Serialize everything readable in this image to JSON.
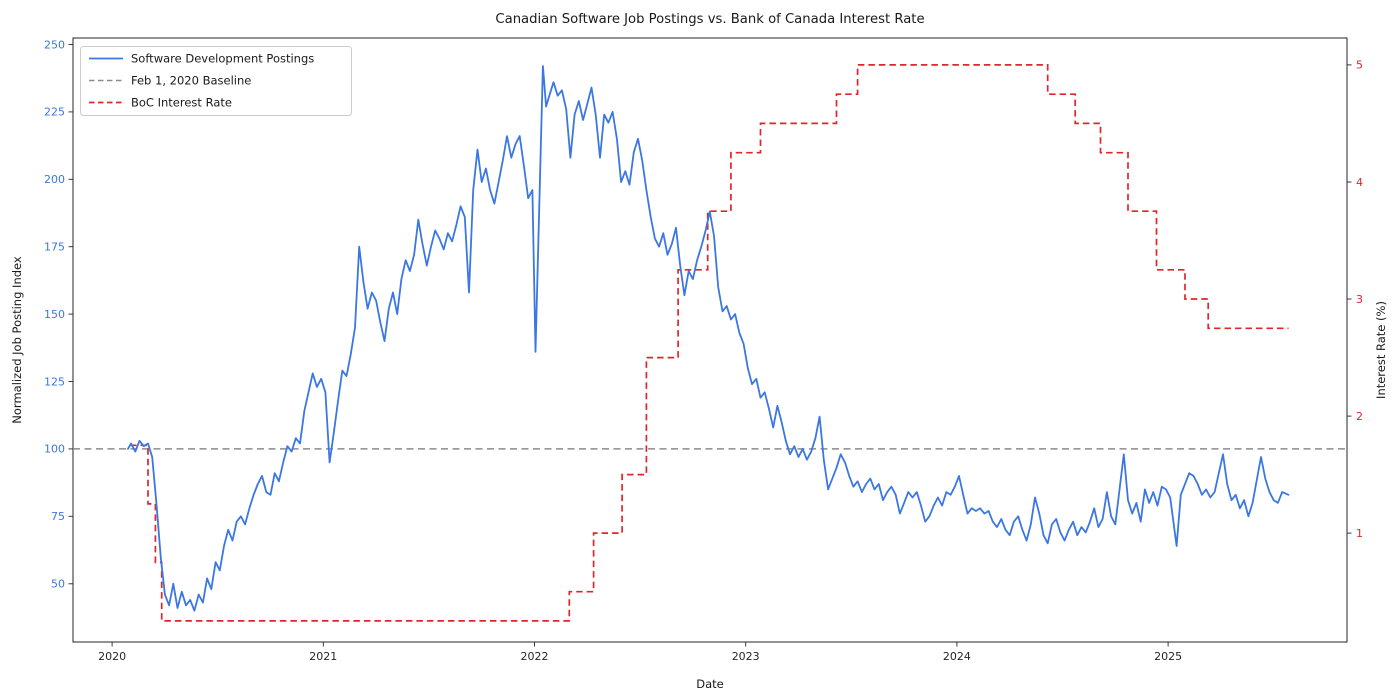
{
  "title": "Canadian Software Job Postings vs. Bank of Canada Interest Rate",
  "colors": {
    "postings_blue": "#3b77e3",
    "rate_red": "#e0252b",
    "baseline_gray": "#8c8c8c",
    "spine": "#262626",
    "legend_border": "#cccccc"
  },
  "legend": {
    "items": [
      {
        "label": "Software Development Postings",
        "style": "solid",
        "color": "#3b77e3"
      },
      {
        "label": "Feb 1, 2020 Baseline",
        "style": "dashed",
        "color": "#8c8c8c"
      },
      {
        "label": "BoC Interest Rate",
        "style": "dashed",
        "color": "#e0252b"
      }
    ]
  },
  "chart_data": {
    "type": "line",
    "title": "Canadian Software Job Postings vs. Bank of Canada Interest Rate",
    "xlabel": "Date",
    "ylabel_left": "Normalized Job Posting Index",
    "ylabel_right": "Interest Rate (%)",
    "legend_position": "upper left",
    "grid": false,
    "xlim": [
      2019.815,
      2025.847
    ],
    "ylim_left": [
      28.4,
      252.4
    ],
    "ylim_right": [
      0.07,
      5.23
    ],
    "x_ticks": [
      2020,
      2021,
      2022,
      2023,
      2024,
      2025
    ],
    "y_ticks_left": [
      50,
      75,
      100,
      125,
      150,
      175,
      200,
      225,
      250
    ],
    "y_ticks_right": [
      1,
      2,
      3,
      4,
      5
    ],
    "baseline": {
      "value": 100,
      "axis": "left",
      "label": "Feb 1, 2020 Baseline"
    },
    "series": [
      {
        "name": "Software Development Postings",
        "axis": "left",
        "style": "solid",
        "points": [
          [
            2020.075,
            100
          ],
          [
            2020.09,
            102
          ],
          [
            2020.11,
            99
          ],
          [
            2020.13,
            103
          ],
          [
            2020.15,
            101
          ],
          [
            2020.17,
            102
          ],
          [
            2020.19,
            97
          ],
          [
            2020.21,
            80
          ],
          [
            2020.23,
            60
          ],
          [
            2020.25,
            46
          ],
          [
            2020.27,
            42
          ],
          [
            2020.29,
            50
          ],
          [
            2020.31,
            41
          ],
          [
            2020.33,
            47
          ],
          [
            2020.35,
            42
          ],
          [
            2020.37,
            44
          ],
          [
            2020.39,
            40
          ],
          [
            2020.41,
            46
          ],
          [
            2020.43,
            43
          ],
          [
            2020.45,
            52
          ],
          [
            2020.47,
            48
          ],
          [
            2020.49,
            58
          ],
          [
            2020.51,
            55
          ],
          [
            2020.53,
            64
          ],
          [
            2020.55,
            70
          ],
          [
            2020.57,
            66
          ],
          [
            2020.59,
            73
          ],
          [
            2020.61,
            75
          ],
          [
            2020.63,
            72
          ],
          [
            2020.65,
            78
          ],
          [
            2020.67,
            83
          ],
          [
            2020.69,
            87
          ],
          [
            2020.71,
            90
          ],
          [
            2020.73,
            84
          ],
          [
            2020.75,
            83
          ],
          [
            2020.77,
            91
          ],
          [
            2020.79,
            88
          ],
          [
            2020.81,
            95
          ],
          [
            2020.83,
            101
          ],
          [
            2020.85,
            99
          ],
          [
            2020.87,
            104
          ],
          [
            2020.89,
            102
          ],
          [
            2020.91,
            114
          ],
          [
            2020.93,
            121
          ],
          [
            2020.95,
            128
          ],
          [
            2020.97,
            123
          ],
          [
            2020.99,
            126
          ],
          [
            2021.01,
            121
          ],
          [
            2021.03,
            95
          ],
          [
            2021.05,
            106
          ],
          [
            2021.07,
            118
          ],
          [
            2021.09,
            129
          ],
          [
            2021.11,
            127
          ],
          [
            2021.13,
            135
          ],
          [
            2021.15,
            145
          ],
          [
            2021.17,
            175
          ],
          [
            2021.19,
            162
          ],
          [
            2021.21,
            152
          ],
          [
            2021.23,
            158
          ],
          [
            2021.25,
            155
          ],
          [
            2021.27,
            147
          ],
          [
            2021.29,
            140
          ],
          [
            2021.31,
            152
          ],
          [
            2021.33,
            158
          ],
          [
            2021.35,
            150
          ],
          [
            2021.37,
            163
          ],
          [
            2021.39,
            170
          ],
          [
            2021.41,
            166
          ],
          [
            2021.43,
            172
          ],
          [
            2021.45,
            185
          ],
          [
            2021.47,
            176
          ],
          [
            2021.49,
            168
          ],
          [
            2021.51,
            175
          ],
          [
            2021.53,
            181
          ],
          [
            2021.55,
            178
          ],
          [
            2021.57,
            174
          ],
          [
            2021.59,
            180
          ],
          [
            2021.61,
            177
          ],
          [
            2021.63,
            183
          ],
          [
            2021.65,
            190
          ],
          [
            2021.67,
            186
          ],
          [
            2021.69,
            158
          ],
          [
            2021.71,
            196
          ],
          [
            2021.73,
            211
          ],
          [
            2021.75,
            199
          ],
          [
            2021.77,
            204
          ],
          [
            2021.79,
            196
          ],
          [
            2021.81,
            191
          ],
          [
            2021.83,
            199
          ],
          [
            2021.85,
            207
          ],
          [
            2021.87,
            216
          ],
          [
            2021.89,
            208
          ],
          [
            2021.91,
            213
          ],
          [
            2021.93,
            216
          ],
          [
            2021.95,
            205
          ],
          [
            2021.97,
            193
          ],
          [
            2021.99,
            196
          ],
          [
            2022.005,
            136
          ],
          [
            2022.04,
            242
          ],
          [
            2022.055,
            227
          ],
          [
            2022.07,
            231
          ],
          [
            2022.09,
            236
          ],
          [
            2022.11,
            231
          ],
          [
            2022.13,
            233
          ],
          [
            2022.15,
            226
          ],
          [
            2022.17,
            208
          ],
          [
            2022.19,
            224
          ],
          [
            2022.21,
            229
          ],
          [
            2022.23,
            222
          ],
          [
            2022.25,
            228
          ],
          [
            2022.27,
            234
          ],
          [
            2022.29,
            224
          ],
          [
            2022.31,
            208
          ],
          [
            2022.33,
            224
          ],
          [
            2022.35,
            221
          ],
          [
            2022.37,
            225
          ],
          [
            2022.39,
            215
          ],
          [
            2022.41,
            199
          ],
          [
            2022.43,
            203
          ],
          [
            2022.45,
            198
          ],
          [
            2022.47,
            210
          ],
          [
            2022.49,
            215
          ],
          [
            2022.51,
            207
          ],
          [
            2022.53,
            196
          ],
          [
            2022.55,
            186
          ],
          [
            2022.57,
            178
          ],
          [
            2022.59,
            175
          ],
          [
            2022.61,
            180
          ],
          [
            2022.63,
            172
          ],
          [
            2022.65,
            176
          ],
          [
            2022.67,
            182
          ],
          [
            2022.69,
            168
          ],
          [
            2022.71,
            157
          ],
          [
            2022.73,
            166
          ],
          [
            2022.75,
            163
          ],
          [
            2022.77,
            170
          ],
          [
            2022.79,
            175
          ],
          [
            2022.81,
            181
          ],
          [
            2022.83,
            188
          ],
          [
            2022.85,
            179
          ],
          [
            2022.87,
            160
          ],
          [
            2022.89,
            151
          ],
          [
            2022.91,
            153
          ],
          [
            2022.93,
            148
          ],
          [
            2022.95,
            150
          ],
          [
            2022.97,
            143
          ],
          [
            2022.99,
            139
          ],
          [
            2023.01,
            130
          ],
          [
            2023.03,
            124
          ],
          [
            2023.05,
            126
          ],
          [
            2023.07,
            119
          ],
          [
            2023.09,
            121
          ],
          [
            2023.11,
            115
          ],
          [
            2023.13,
            108
          ],
          [
            2023.15,
            116
          ],
          [
            2023.17,
            110
          ],
          [
            2023.19,
            103
          ],
          [
            2023.21,
            98
          ],
          [
            2023.23,
            101
          ],
          [
            2023.25,
            97
          ],
          [
            2023.27,
            100
          ],
          [
            2023.29,
            96
          ],
          [
            2023.31,
            99
          ],
          [
            2023.33,
            104
          ],
          [
            2023.35,
            112
          ],
          [
            2023.37,
            96
          ],
          [
            2023.39,
            85
          ],
          [
            2023.41,
            89
          ],
          [
            2023.43,
            93
          ],
          [
            2023.45,
            98
          ],
          [
            2023.47,
            95
          ],
          [
            2023.49,
            90
          ],
          [
            2023.51,
            86
          ],
          [
            2023.53,
            88
          ],
          [
            2023.55,
            84
          ],
          [
            2023.57,
            87
          ],
          [
            2023.59,
            89
          ],
          [
            2023.61,
            85
          ],
          [
            2023.63,
            87
          ],
          [
            2023.65,
            81
          ],
          [
            2023.67,
            84
          ],
          [
            2023.69,
            86
          ],
          [
            2023.71,
            83
          ],
          [
            2023.73,
            76
          ],
          [
            2023.75,
            80
          ],
          [
            2023.77,
            84
          ],
          [
            2023.79,
            82
          ],
          [
            2023.81,
            84
          ],
          [
            2023.83,
            79
          ],
          [
            2023.85,
            73
          ],
          [
            2023.87,
            75
          ],
          [
            2023.89,
            79
          ],
          [
            2023.91,
            82
          ],
          [
            2023.93,
            79
          ],
          [
            2023.95,
            84
          ],
          [
            2023.97,
            83
          ],
          [
            2023.99,
            86
          ],
          [
            2024.01,
            90
          ],
          [
            2024.03,
            83
          ],
          [
            2024.05,
            76
          ],
          [
            2024.07,
            78
          ],
          [
            2024.09,
            77
          ],
          [
            2024.11,
            78
          ],
          [
            2024.13,
            76
          ],
          [
            2024.15,
            77
          ],
          [
            2024.17,
            73
          ],
          [
            2024.19,
            71
          ],
          [
            2024.21,
            74
          ],
          [
            2024.23,
            70
          ],
          [
            2024.25,
            68
          ],
          [
            2024.27,
            73
          ],
          [
            2024.29,
            75
          ],
          [
            2024.31,
            70
          ],
          [
            2024.33,
            66
          ],
          [
            2024.35,
            72
          ],
          [
            2024.37,
            82
          ],
          [
            2024.39,
            76
          ],
          [
            2024.41,
            68
          ],
          [
            2024.43,
            65
          ],
          [
            2024.45,
            72
          ],
          [
            2024.47,
            74
          ],
          [
            2024.49,
            69
          ],
          [
            2024.51,
            66
          ],
          [
            2024.53,
            70
          ],
          [
            2024.55,
            73
          ],
          [
            2024.57,
            68
          ],
          [
            2024.59,
            71
          ],
          [
            2024.61,
            69
          ],
          [
            2024.63,
            73
          ],
          [
            2024.65,
            78
          ],
          [
            2024.67,
            71
          ],
          [
            2024.69,
            74
          ],
          [
            2024.71,
            84
          ],
          [
            2024.73,
            75
          ],
          [
            2024.75,
            72
          ],
          [
            2024.79,
            98
          ],
          [
            2024.81,
            81
          ],
          [
            2024.83,
            76
          ],
          [
            2024.85,
            80
          ],
          [
            2024.87,
            73
          ],
          [
            2024.89,
            85
          ],
          [
            2024.91,
            80
          ],
          [
            2024.93,
            84
          ],
          [
            2024.95,
            79
          ],
          [
            2024.97,
            86
          ],
          [
            2024.99,
            85
          ],
          [
            2025.01,
            82
          ],
          [
            2025.04,
            64
          ],
          [
            2025.06,
            83
          ],
          [
            2025.08,
            87
          ],
          [
            2025.1,
            91
          ],
          [
            2025.12,
            90
          ],
          [
            2025.14,
            87
          ],
          [
            2025.16,
            83
          ],
          [
            2025.18,
            85
          ],
          [
            2025.2,
            82
          ],
          [
            2025.22,
            84
          ],
          [
            2025.26,
            98
          ],
          [
            2025.28,
            87
          ],
          [
            2025.3,
            81
          ],
          [
            2025.32,
            83
          ],
          [
            2025.34,
            78
          ],
          [
            2025.36,
            81
          ],
          [
            2025.38,
            75
          ],
          [
            2025.4,
            80
          ],
          [
            2025.44,
            97
          ],
          [
            2025.46,
            89
          ],
          [
            2025.48,
            84
          ],
          [
            2025.5,
            81
          ],
          [
            2025.52,
            80
          ],
          [
            2025.54,
            84
          ],
          [
            2025.57,
            83
          ]
        ]
      },
      {
        "name": "BoC Interest Rate",
        "axis": "right",
        "style": "dashed",
        "step": true,
        "x_end": 2025.57,
        "points": [
          [
            2020.085,
            1.75
          ],
          [
            2020.17,
            1.25
          ],
          [
            2020.205,
            0.75
          ],
          [
            2020.235,
            0.25
          ],
          [
            2022.165,
            0.5
          ],
          [
            2022.28,
            1.0
          ],
          [
            2022.415,
            1.5
          ],
          [
            2022.53,
            2.5
          ],
          [
            2022.68,
            3.25
          ],
          [
            2022.82,
            3.75
          ],
          [
            2022.93,
            4.25
          ],
          [
            2023.07,
            4.5
          ],
          [
            2023.43,
            4.75
          ],
          [
            2023.53,
            5.0
          ],
          [
            2024.43,
            4.75
          ],
          [
            2024.56,
            4.5
          ],
          [
            2024.68,
            4.25
          ],
          [
            2024.81,
            3.75
          ],
          [
            2024.945,
            3.25
          ],
          [
            2025.08,
            3.0
          ],
          [
            2025.19,
            2.75
          ]
        ]
      }
    ]
  }
}
